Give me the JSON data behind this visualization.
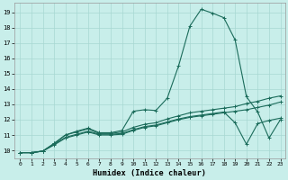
{
  "bg_color": "#c8eeea",
  "grid_color": "#a8d8d2",
  "line_color": "#1a6b5a",
  "xlabel": "Humidex (Indice chaleur)",
  "xlim_min": -0.5,
  "xlim_max": 23.4,
  "ylim_min": 9.5,
  "ylim_max": 19.6,
  "xticks": [
    0,
    1,
    2,
    3,
    4,
    5,
    6,
    7,
    8,
    9,
    10,
    11,
    12,
    13,
    14,
    15,
    16,
    17,
    18,
    19,
    20,
    21,
    22,
    23
  ],
  "yticks": [
    10,
    11,
    12,
    13,
    14,
    15,
    16,
    17,
    18,
    19
  ],
  "curve1_x": [
    0,
    1,
    2,
    3,
    4,
    5,
    6,
    7,
    8,
    9,
    10,
    11,
    12,
    13,
    14,
    15,
    16,
    17,
    18,
    19,
    20,
    21,
    22,
    23
  ],
  "curve1_y": [
    9.85,
    9.85,
    9.95,
    10.45,
    11.0,
    11.25,
    11.45,
    11.15,
    11.15,
    11.3,
    12.55,
    12.65,
    12.6,
    13.4,
    15.5,
    18.1,
    19.2,
    18.95,
    18.65,
    17.2,
    13.5,
    12.5,
    10.8,
    12.0
  ],
  "curve2_x": [
    0,
    1,
    2,
    3,
    4,
    5,
    6,
    7,
    8,
    9,
    10,
    11,
    12,
    13,
    14,
    15,
    16,
    17,
    18,
    19,
    20,
    21,
    22,
    23
  ],
  "curve2_y": [
    9.85,
    9.85,
    9.95,
    10.35,
    10.8,
    11.0,
    11.2,
    11.0,
    11.0,
    11.05,
    11.3,
    11.5,
    11.6,
    11.8,
    12.0,
    12.15,
    12.25,
    12.35,
    12.45,
    12.55,
    12.65,
    12.8,
    12.95,
    13.15
  ],
  "curve3_x": [
    0,
    1,
    2,
    3,
    4,
    5,
    6,
    7,
    8,
    9,
    10,
    11,
    12,
    13,
    14,
    15,
    16,
    17,
    18,
    19,
    20,
    21,
    22,
    23
  ],
  "curve3_y": [
    9.85,
    9.85,
    9.95,
    10.4,
    10.85,
    11.05,
    11.25,
    11.05,
    11.05,
    11.1,
    11.35,
    11.55,
    11.65,
    11.85,
    12.05,
    12.2,
    12.3,
    12.4,
    12.5,
    11.8,
    10.4,
    11.75,
    11.95,
    12.1
  ],
  "curve4_x": [
    0,
    1,
    2,
    3,
    4,
    5,
    6,
    7,
    8,
    9,
    10,
    11,
    12,
    13,
    14,
    15,
    16,
    17,
    18,
    19,
    20,
    21,
    22,
    23
  ],
  "curve4_y": [
    9.85,
    9.85,
    9.95,
    10.45,
    11.0,
    11.2,
    11.4,
    11.1,
    11.1,
    11.2,
    11.5,
    11.7,
    11.8,
    12.05,
    12.25,
    12.45,
    12.55,
    12.65,
    12.75,
    12.85,
    13.05,
    13.2,
    13.4,
    13.55
  ]
}
